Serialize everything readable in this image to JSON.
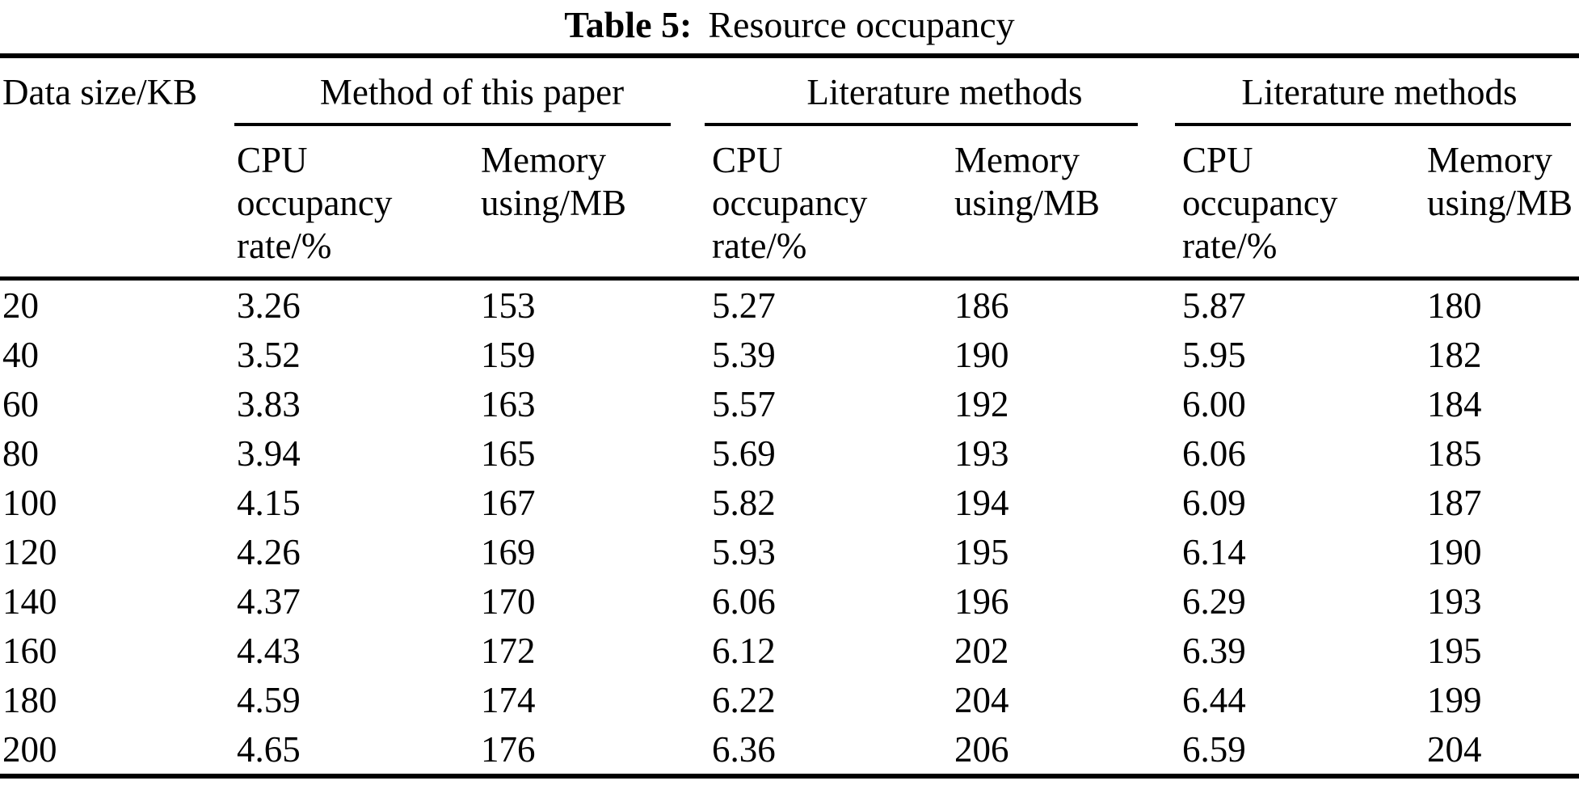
{
  "title": {
    "label": "Table 5:",
    "caption": "Resource occupancy"
  },
  "table": {
    "row_header": "Data size/KB",
    "groups": [
      {
        "label": "Method of this paper"
      },
      {
        "label": "Literature methods"
      },
      {
        "label": "Literature methods"
      }
    ],
    "sub_headers": {
      "cpu": "CPU\noccupancy\nrate/%",
      "memory": "Memory\nusing/MB"
    },
    "rows": [
      {
        "data_size": "20",
        "cells": [
          "3.26",
          "153",
          "5.27",
          "186",
          "5.87",
          "180"
        ]
      },
      {
        "data_size": "40",
        "cells": [
          "3.52",
          "159",
          "5.39",
          "190",
          "5.95",
          "182"
        ]
      },
      {
        "data_size": "60",
        "cells": [
          "3.83",
          "163",
          "5.57",
          "192",
          "6.00",
          "184"
        ]
      },
      {
        "data_size": "80",
        "cells": [
          "3.94",
          "165",
          "5.69",
          "193",
          "6.06",
          "185"
        ]
      },
      {
        "data_size": "100",
        "cells": [
          "4.15",
          "167",
          "5.82",
          "194",
          "6.09",
          "187"
        ]
      },
      {
        "data_size": "120",
        "cells": [
          "4.26",
          "169",
          "5.93",
          "195",
          "6.14",
          "190"
        ]
      },
      {
        "data_size": "140",
        "cells": [
          "4.37",
          "170",
          "6.06",
          "196",
          "6.29",
          "193"
        ]
      },
      {
        "data_size": "160",
        "cells": [
          "4.43",
          "172",
          "6.12",
          "202",
          "6.39",
          "195"
        ]
      },
      {
        "data_size": "180",
        "cells": [
          "4.59",
          "174",
          "6.22",
          "204",
          "6.44",
          "199"
        ]
      },
      {
        "data_size": "200",
        "cells": [
          "4.65",
          "176",
          "6.36",
          "206",
          "6.59",
          "204"
        ]
      }
    ]
  },
  "chart_data": {
    "type": "table",
    "title": "Table 5: Resource occupancy",
    "row_header": "Data size/KB",
    "column_groups": [
      "Method of this paper",
      "Literature methods",
      "Literature methods"
    ],
    "sub_columns": [
      "CPU occupancy rate/%",
      "Memory using/MB"
    ],
    "rows": [
      [
        20,
        3.26,
        153,
        5.27,
        186,
        5.87,
        180
      ],
      [
        40,
        3.52,
        159,
        5.39,
        190,
        5.95,
        182
      ],
      [
        60,
        3.83,
        163,
        5.57,
        192,
        6.0,
        184
      ],
      [
        80,
        3.94,
        165,
        5.69,
        193,
        6.06,
        185
      ],
      [
        100,
        4.15,
        167,
        5.82,
        194,
        6.09,
        187
      ],
      [
        120,
        4.26,
        169,
        5.93,
        195,
        6.14,
        190
      ],
      [
        140,
        4.37,
        170,
        6.06,
        196,
        6.29,
        193
      ],
      [
        160,
        4.43,
        172,
        6.12,
        202,
        6.39,
        195
      ],
      [
        180,
        4.59,
        174,
        6.22,
        204,
        6.44,
        199
      ],
      [
        200,
        4.65,
        176,
        6.36,
        206,
        6.59,
        204
      ]
    ]
  }
}
